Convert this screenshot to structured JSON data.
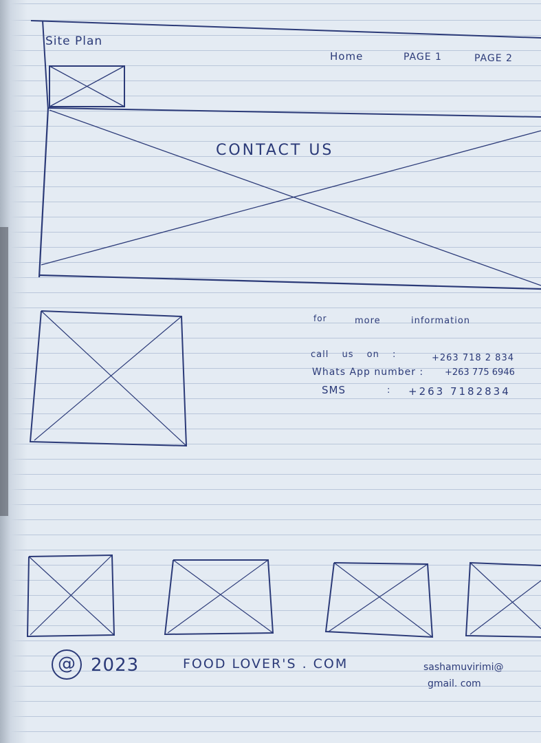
{
  "header": {
    "site_title": "Site Plan",
    "nav": [
      "Home",
      "PAGE 1",
      "PAGE 2"
    ]
  },
  "hero": {
    "title": "CONTACT US"
  },
  "contact": {
    "intro": [
      "for",
      "more",
      "information"
    ],
    "call_label": "call us on :",
    "call_number": "+263 718 2 834",
    "whatsapp_label": "Whats App number :",
    "whatsapp_number": "+263 775 6946",
    "sms_label": "SMS",
    "sms_sep": ":",
    "sms_number": "+263 7182834"
  },
  "footer": {
    "copyright_symbol": "@",
    "year": "2023",
    "brand": "FOOD LOVER'S . COM",
    "email_line1": "sashamuvirimi@",
    "email_line2": "gmail. com"
  }
}
